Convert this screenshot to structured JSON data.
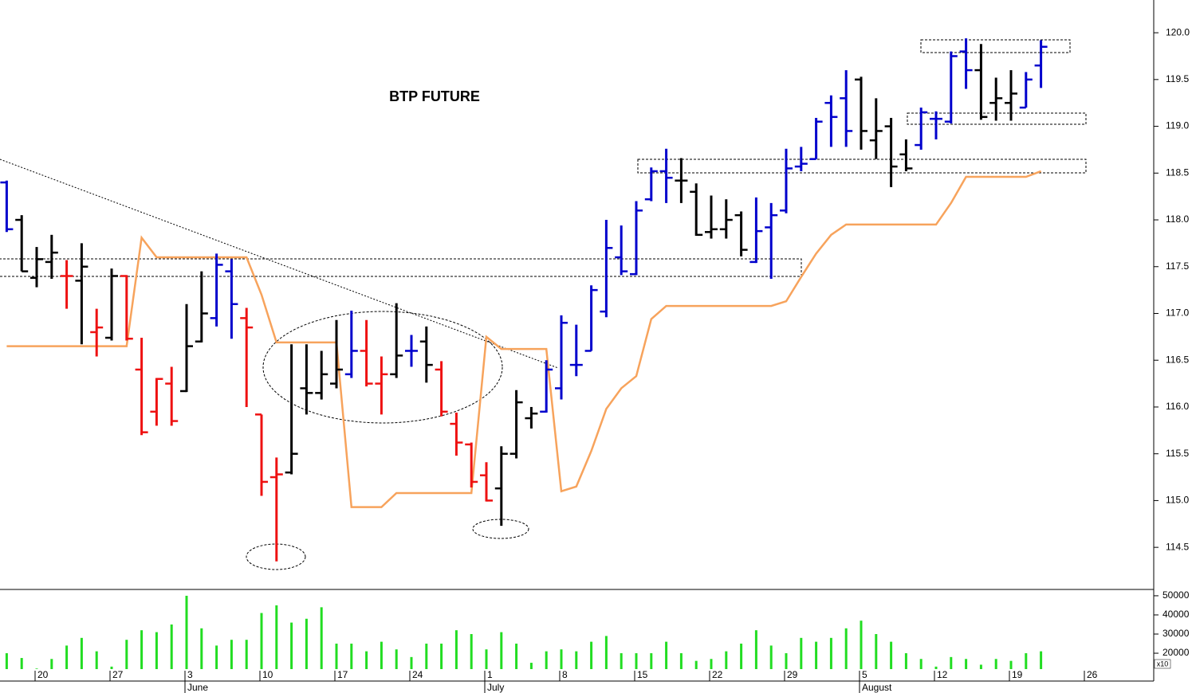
{
  "chart_data": [
    {
      "type": "ohlc",
      "title": "BTP FUTURE",
      "categories": [
        null,
        null,
        "20",
        null,
        null,
        null,
        null,
        "27",
        null,
        null,
        null,
        null,
        "3",
        null,
        null,
        null,
        null,
        "10",
        null,
        null,
        null,
        null,
        "17",
        null,
        null,
        null,
        null,
        "24",
        null,
        null,
        null,
        null,
        "1",
        null,
        null,
        null,
        null,
        "8",
        null,
        null,
        null,
        null,
        "15",
        null,
        null,
        null,
        null,
        "22",
        null,
        null,
        null,
        null,
        "29",
        null,
        null,
        null,
        null,
        "5",
        null,
        null,
        null,
        null,
        "12",
        null,
        null,
        null,
        null,
        "19",
        null,
        null,
        null,
        null,
        "26"
      ],
      "months": [
        null,
        null,
        null,
        null,
        null,
        null,
        null,
        null,
        null,
        null,
        null,
        null,
        "June",
        null,
        null,
        null,
        null,
        null,
        null,
        null,
        null,
        null,
        null,
        null,
        null,
        null,
        null,
        null,
        null,
        null,
        null,
        null,
        "July",
        null,
        null,
        null,
        null,
        null,
        null,
        null,
        null,
        null,
        null,
        null,
        null,
        null,
        null,
        null,
        null,
        null,
        null,
        null,
        null,
        null,
        null,
        null,
        null,
        "August",
        null,
        null,
        null,
        null,
        null,
        null,
        null,
        null,
        null,
        null,
        null,
        null,
        null,
        null,
        null,
        null,
        null
      ],
      "open": [
        118.4,
        118.0,
        117.38,
        117.55,
        117.4,
        117.35,
        116.8,
        116.74,
        117.4,
        116.4,
        115.95,
        116.25,
        116.17,
        116.7,
        116.95,
        117.45,
        116.95,
        115.92,
        115.25,
        115.3,
        116.2,
        116.15,
        116.25,
        116.35,
        116.6,
        116.25,
        116.35,
        116.6,
        116.7,
        116.4,
        115.82,
        115.6,
        115.27,
        115.13,
        115.5,
        115.88,
        115.95,
        116.2,
        116.45,
        116.6,
        117.02,
        117.6,
        117.42,
        118.22,
        118.52,
        118.42,
        118.3,
        117.87,
        117.9,
        118.05,
        117.55,
        117.92,
        118.1,
        118.57,
        118.65,
        119.25,
        119.3,
        119.5,
        118.85,
        119.0,
        118.7,
        118.8,
        119.08,
        119.05,
        119.8,
        119.6,
        119.25,
        119.25,
        119.2,
        119.65,
        null,
        null,
        null
      ],
      "high": [
        118.42,
        118.05,
        117.71,
        117.84,
        117.57,
        117.75,
        117.05,
        117.48,
        117.41,
        116.74,
        116.31,
        116.43,
        117.1,
        117.45,
        117.64,
        117.58,
        117.06,
        115.92,
        115.46,
        116.67,
        116.67,
        116.6,
        116.93,
        117.03,
        116.93,
        116.54,
        117.11,
        116.77,
        116.86,
        116.49,
        115.94,
        115.62,
        115.41,
        115.58,
        116.18,
        116.0,
        116.5,
        116.98,
        116.88,
        117.3,
        118.0,
        117.94,
        118.2,
        118.56,
        118.76,
        118.66,
        118.39,
        118.26,
        118.22,
        118.09,
        118.24,
        118.18,
        118.76,
        118.78,
        119.09,
        119.33,
        119.6,
        119.53,
        119.3,
        119.09,
        118.86,
        119.2,
        119.16,
        119.8,
        119.94,
        119.88,
        119.52,
        119.6,
        119.58,
        119.92,
        null,
        null,
        null
      ],
      "low": [
        117.87,
        117.45,
        117.28,
        117.37,
        117.05,
        116.67,
        116.54,
        116.71,
        116.71,
        115.7,
        115.8,
        115.8,
        116.16,
        116.69,
        116.86,
        116.73,
        116.0,
        115.05,
        114.35,
        115.28,
        115.92,
        116.08,
        116.2,
        116.31,
        116.22,
        115.92,
        116.31,
        116.43,
        116.26,
        115.9,
        115.48,
        115.14,
        114.99,
        114.73,
        115.45,
        115.77,
        115.94,
        116.08,
        116.33,
        116.6,
        116.96,
        117.41,
        117.41,
        118.2,
        118.18,
        118.18,
        117.83,
        117.8,
        117.8,
        117.61,
        117.54,
        117.37,
        118.07,
        118.52,
        118.65,
        118.78,
        118.78,
        118.75,
        118.65,
        118.35,
        118.52,
        118.75,
        118.86,
        119.03,
        119.4,
        119.07,
        119.06,
        119.06,
        119.2,
        119.41,
        null,
        null,
        null
      ],
      "close": [
        117.9,
        117.45,
        117.58,
        117.65,
        117.4,
        117.5,
        116.85,
        117.4,
        116.73,
        115.73,
        116.3,
        115.85,
        116.65,
        117.0,
        117.52,
        117.1,
        116.85,
        115.2,
        115.28,
        115.5,
        116.15,
        116.35,
        116.4,
        116.6,
        116.25,
        116.35,
        116.55,
        116.6,
        116.45,
        115.95,
        115.62,
        115.2,
        115.0,
        115.5,
        116.05,
        115.93,
        116.4,
        116.9,
        116.45,
        117.25,
        117.7,
        117.45,
        118.1,
        118.52,
        118.45,
        118.42,
        117.84,
        117.9,
        118.0,
        117.68,
        117.88,
        118.05,
        118.55,
        118.6,
        119.05,
        119.1,
        118.95,
        118.95,
        118.95,
        118.57,
        118.55,
        119.15,
        119.08,
        119.75,
        119.6,
        119.1,
        119.3,
        119.35,
        119.5,
        119.85,
        null,
        null,
        null
      ],
      "bar_colors": [
        "#0000cc",
        "#000000",
        "#000000",
        "#000000",
        "#ee1111",
        "#000000",
        "#ee1111",
        "#000000",
        "#ee1111",
        "#ee1111",
        "#ee1111",
        "#ee1111",
        "#000000",
        "#000000",
        "#0000cc",
        "#0000cc",
        "#ee1111",
        "#ee1111",
        "#ee1111",
        "#000000",
        "#000000",
        "#000000",
        "#000000",
        "#0000cc",
        "#ee1111",
        "#ee1111",
        "#000000",
        "#0000cc",
        "#000000",
        "#ee1111",
        "#ee1111",
        "#ee1111",
        "#ee1111",
        "#000000",
        "#000000",
        "#000000",
        "#0000cc",
        "#0000cc",
        "#0000cc",
        "#0000cc",
        "#0000cc",
        "#0000cc",
        "#0000cc",
        "#0000cc",
        "#0000cc",
        "#000000",
        "#000000",
        "#000000",
        "#000000",
        "#000000",
        "#0000cc",
        "#0000cc",
        "#0000cc",
        "#0000cc",
        "#0000cc",
        "#0000cc",
        "#0000cc",
        "#000000",
        "#000000",
        "#000000",
        "#000000",
        "#0000cc",
        "#0000cc",
        "#0000cc",
        "#0000cc",
        "#000000",
        "#000000",
        "#000000",
        "#0000cc",
        "#0000cc",
        null,
        null,
        null
      ],
      "stop_line": {
        "color": "#f7a35c",
        "values": [
          116.65,
          116.65,
          116.65,
          116.65,
          116.65,
          116.65,
          116.65,
          116.65,
          116.65,
          117.81,
          117.6,
          117.6,
          117.6,
          117.6,
          117.6,
          117.6,
          117.6,
          117.2,
          116.69,
          116.69,
          116.69,
          116.69,
          116.69,
          114.93,
          114.93,
          114.93,
          115.08,
          115.08,
          115.08,
          115.08,
          115.08,
          115.08,
          116.75,
          116.62,
          116.62,
          116.62,
          116.62,
          115.1,
          115.15,
          115.53,
          115.98,
          116.2,
          116.33,
          116.94,
          117.08,
          117.08,
          117.08,
          117.08,
          117.08,
          117.08,
          117.08,
          117.08,
          117.13,
          117.39,
          117.64,
          117.84,
          117.95,
          117.95,
          117.95,
          117.95,
          117.95,
          117.95,
          117.95,
          118.18,
          118.46,
          118.46,
          118.46,
          118.46,
          118.46,
          118.52,
          null,
          null,
          null
        ]
      },
      "ylim": [
        114.05,
        120.35
      ],
      "yticks": [
        114.5,
        {
          "value": 115,
          "label": "115.0"
        },
        115.5,
        {
          "value": 116,
          "label": "116.0"
        },
        116.5,
        {
          "value": 117,
          "label": "117.0"
        },
        117.5,
        {
          "value": 118,
          "label": "118.0"
        },
        118.5,
        {
          "value": 119,
          "label": "119.0"
        },
        119.5,
        {
          "value": 120,
          "label": "120.0"
        }
      ]
    },
    {
      "type": "bar",
      "unit_label": "x10",
      "color": "#22dd22",
      "values": [
        20000,
        17500,
        12000,
        17000,
        24000,
        28000,
        21000,
        13000,
        27000,
        32000,
        31000,
        35000,
        50000,
        33000,
        24000,
        27000,
        27000,
        41000,
        45000,
        36000,
        38000,
        44000,
        25000,
        25000,
        21000,
        26000,
        22000,
        18000,
        25000,
        25000,
        32000,
        30000,
        22000,
        31000,
        25000,
        15000,
        21000,
        22000,
        21000,
        26000,
        29000,
        20000,
        20000,
        20000,
        26000,
        20000,
        16000,
        17000,
        21000,
        25000,
        32000,
        24000,
        20000,
        28000,
        26000,
        28000,
        33000,
        37000,
        30000,
        26000,
        20000,
        17000,
        13000,
        18000,
        17000,
        14000,
        17000,
        16000,
        20000,
        21000,
        null,
        null,
        null
      ],
      "ylim": [
        11700,
        53300
      ],
      "yticks": [
        20000,
        30000,
        40000,
        50000
      ]
    }
  ]
}
